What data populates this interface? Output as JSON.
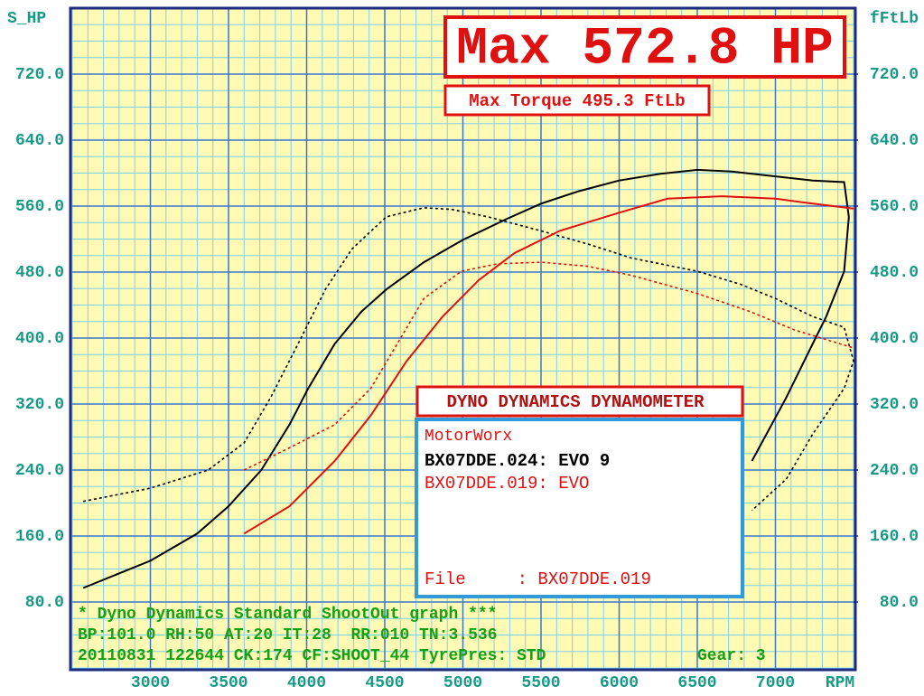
{
  "chart_data": {
    "type": "line",
    "title": "Max 572.8 HP",
    "subtitle": "Max Torque 495.3 FtLb",
    "y_label": "S_HP",
    "y2_label": "fFtLb",
    "x_label": "RPM",
    "box_title": "DYNO DYNAMICS DYNAMOMETER",
    "legend_title": "MotorWorx",
    "file_line": "File     : BX07DDE.019",
    "footer": [
      "* Dyno Dynamics Standard ShootOut graph ***",
      "BP:101.0 RH:50 AT:20 IT:28  RR:010 TN:3.536",
      "20110831 122644 CK:174 CF:SHOOT_44 TyrePres: STD"
    ],
    "gear": "Gear: 3",
    "xlim": [
      2500,
      7500
    ],
    "xticks": [
      3000,
      3500,
      4000,
      4500,
      5000,
      5500,
      6000,
      6500,
      7000
    ],
    "ylim": [
      0,
      800
    ],
    "yticks": [
      {
        "value": 80,
        "label": "80.0"
      },
      {
        "value": 160,
        "label": "160.0"
      },
      {
        "value": 240,
        "label": "240.0"
      },
      {
        "value": 320,
        "label": "320.0"
      },
      {
        "value": 400,
        "label": "400.0"
      },
      {
        "value": 480,
        "label": "480.0"
      },
      {
        "value": 560,
        "label": "560.0"
      },
      {
        "value": 640,
        "label": "640.0"
      },
      {
        "value": 720,
        "label": "720.0"
      }
    ],
    "y2lim": [
      0,
      800
    ],
    "y2ticks": [
      {
        "value": 80,
        "label": "80.0"
      },
      {
        "value": 160,
        "label": "160.0"
      },
      {
        "value": 240,
        "label": "240.0"
      },
      {
        "value": 320,
        "label": "320.0"
      },
      {
        "value": 400,
        "label": "400.0"
      },
      {
        "value": 480,
        "label": "480.0"
      },
      {
        "value": 560,
        "label": "560.0"
      },
      {
        "value": 640,
        "label": "640.0"
      },
      {
        "value": 720,
        "label": "720.0"
      }
    ],
    "grid": true,
    "series": [
      {
        "name": "BX07DDE.024: EVO 9",
        "color": "#000000",
        "power": {
          "x": [
            2570,
            3000,
            3300,
            3500,
            3710,
            3890,
            4010,
            4180,
            4350,
            4510,
            4750,
            5000,
            5275,
            5500,
            5740,
            6000,
            6260,
            6500,
            6720,
            7000,
            7240,
            7440,
            7470,
            7440,
            7325,
            7210,
            7070,
            6850
          ],
          "values": [
            97,
            130,
            163,
            196,
            240,
            295,
            339,
            393,
            432,
            459,
            492,
            519,
            544,
            563,
            578,
            591,
            599,
            604,
            602,
            596,
            591,
            589,
            547,
            481,
            426,
            382,
            328,
            251
          ]
        },
        "torque": {
          "x": [
            2570,
            3000,
            3370,
            3600,
            3770,
            3945,
            4120,
            4290,
            4510,
            4750,
            4930,
            5160,
            5500,
            5800,
            6080,
            6500,
            6780,
            7000,
            7240,
            7440,
            7500,
            7440,
            7240,
            7070,
            6850
          ],
          "values": [
            202,
            218,
            240,
            273,
            328,
            393,
            459,
            508,
            547,
            558,
            556,
            547,
            530,
            514,
            497,
            481,
            465,
            448,
            426,
            413,
            372,
            339,
            284,
            229,
            191
          ]
        }
      },
      {
        "name": "BX07DDE.019: EVO",
        "color": "#e01010",
        "power": {
          "x": [
            3600,
            3890,
            4180,
            4410,
            4640,
            4870,
            5100,
            5330,
            5620,
            6000,
            6310,
            6660,
            7000,
            7240,
            7500
          ],
          "values": [
            163,
            196,
            251,
            306,
            372,
            426,
            470,
            503,
            530,
            552,
            569,
            572,
            569,
            563,
            557
          ]
        },
        "torque": {
          "x": [
            3600,
            3890,
            4180,
            4410,
            4580,
            4750,
            4990,
            5220,
            5500,
            5800,
            6080,
            6500,
            6840,
            7120,
            7500
          ],
          "values": [
            240,
            267,
            295,
            339,
            393,
            448,
            481,
            490,
            492,
            487,
            476,
            454,
            432,
            410,
            388
          ]
        }
      }
    ]
  }
}
